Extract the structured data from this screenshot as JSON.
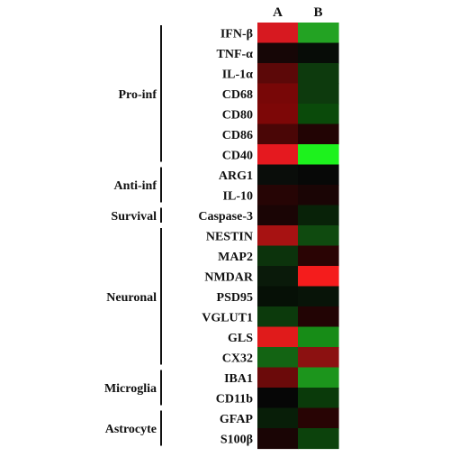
{
  "chart_data": {
    "type": "heatmap",
    "columns": [
      "A",
      "B"
    ],
    "rows": [
      "IFN-β",
      "TNF-α",
      "IL-1α",
      "CD68",
      "CD80",
      "CD86",
      "CD40",
      "ARG1",
      "IL-10",
      "Caspase-3",
      "NESTIN",
      "MAP2",
      "NMDAR",
      "PSD95",
      "VGLUT1",
      "GLS",
      "CX32",
      "IBA1",
      "CD11b",
      "GFAP",
      "S100β"
    ],
    "cell_colors": [
      [
        "#d71920",
        "#23a323"
      ],
      [
        "#160606",
        "#070c07"
      ],
      [
        "#5c0808",
        "#0d3a0d"
      ],
      [
        "#780707",
        "#0d3a0d"
      ],
      [
        "#7d0707",
        "#0a4a0a"
      ],
      [
        "#4a0606",
        "#220404"
      ],
      [
        "#e5191f",
        "#1df21d"
      ],
      [
        "#0a0d0a",
        "#070807"
      ],
      [
        "#260505",
        "#1a0505"
      ],
      [
        "#1a0505",
        "#082208"
      ],
      [
        "#a71212",
        "#0f4a0f"
      ],
      [
        "#0c330c",
        "#2a0404"
      ],
      [
        "#0a1a0a",
        "#f41c1c"
      ],
      [
        "#061006",
        "#081408"
      ],
      [
        "#0c3a0c",
        "#220404"
      ],
      [
        "#e01b1b",
        "#178c17"
      ],
      [
        "#136413",
        "#8c1111"
      ],
      [
        "#6b0a0a",
        "#1c951c"
      ],
      [
        "#060606",
        "#0a3a0a"
      ],
      [
        "#081e08",
        "#280404"
      ],
      [
        "#1a0505",
        "#0c420c"
      ]
    ],
    "groups": [
      {
        "label": "Pro-inf",
        "first_row": 0,
        "last_row": 6
      },
      {
        "label": "Anti-inf",
        "first_row": 7,
        "last_row": 8
      },
      {
        "label": "Survival",
        "first_row": 9,
        "last_row": 9
      },
      {
        "label": "Neuronal",
        "first_row": 10,
        "last_row": 16
      },
      {
        "label": "Microglia",
        "first_row": 17,
        "last_row": 18
      },
      {
        "label": "Astrocyte",
        "first_row": 19,
        "last_row": 20
      }
    ],
    "legend": "none",
    "grid": false
  }
}
